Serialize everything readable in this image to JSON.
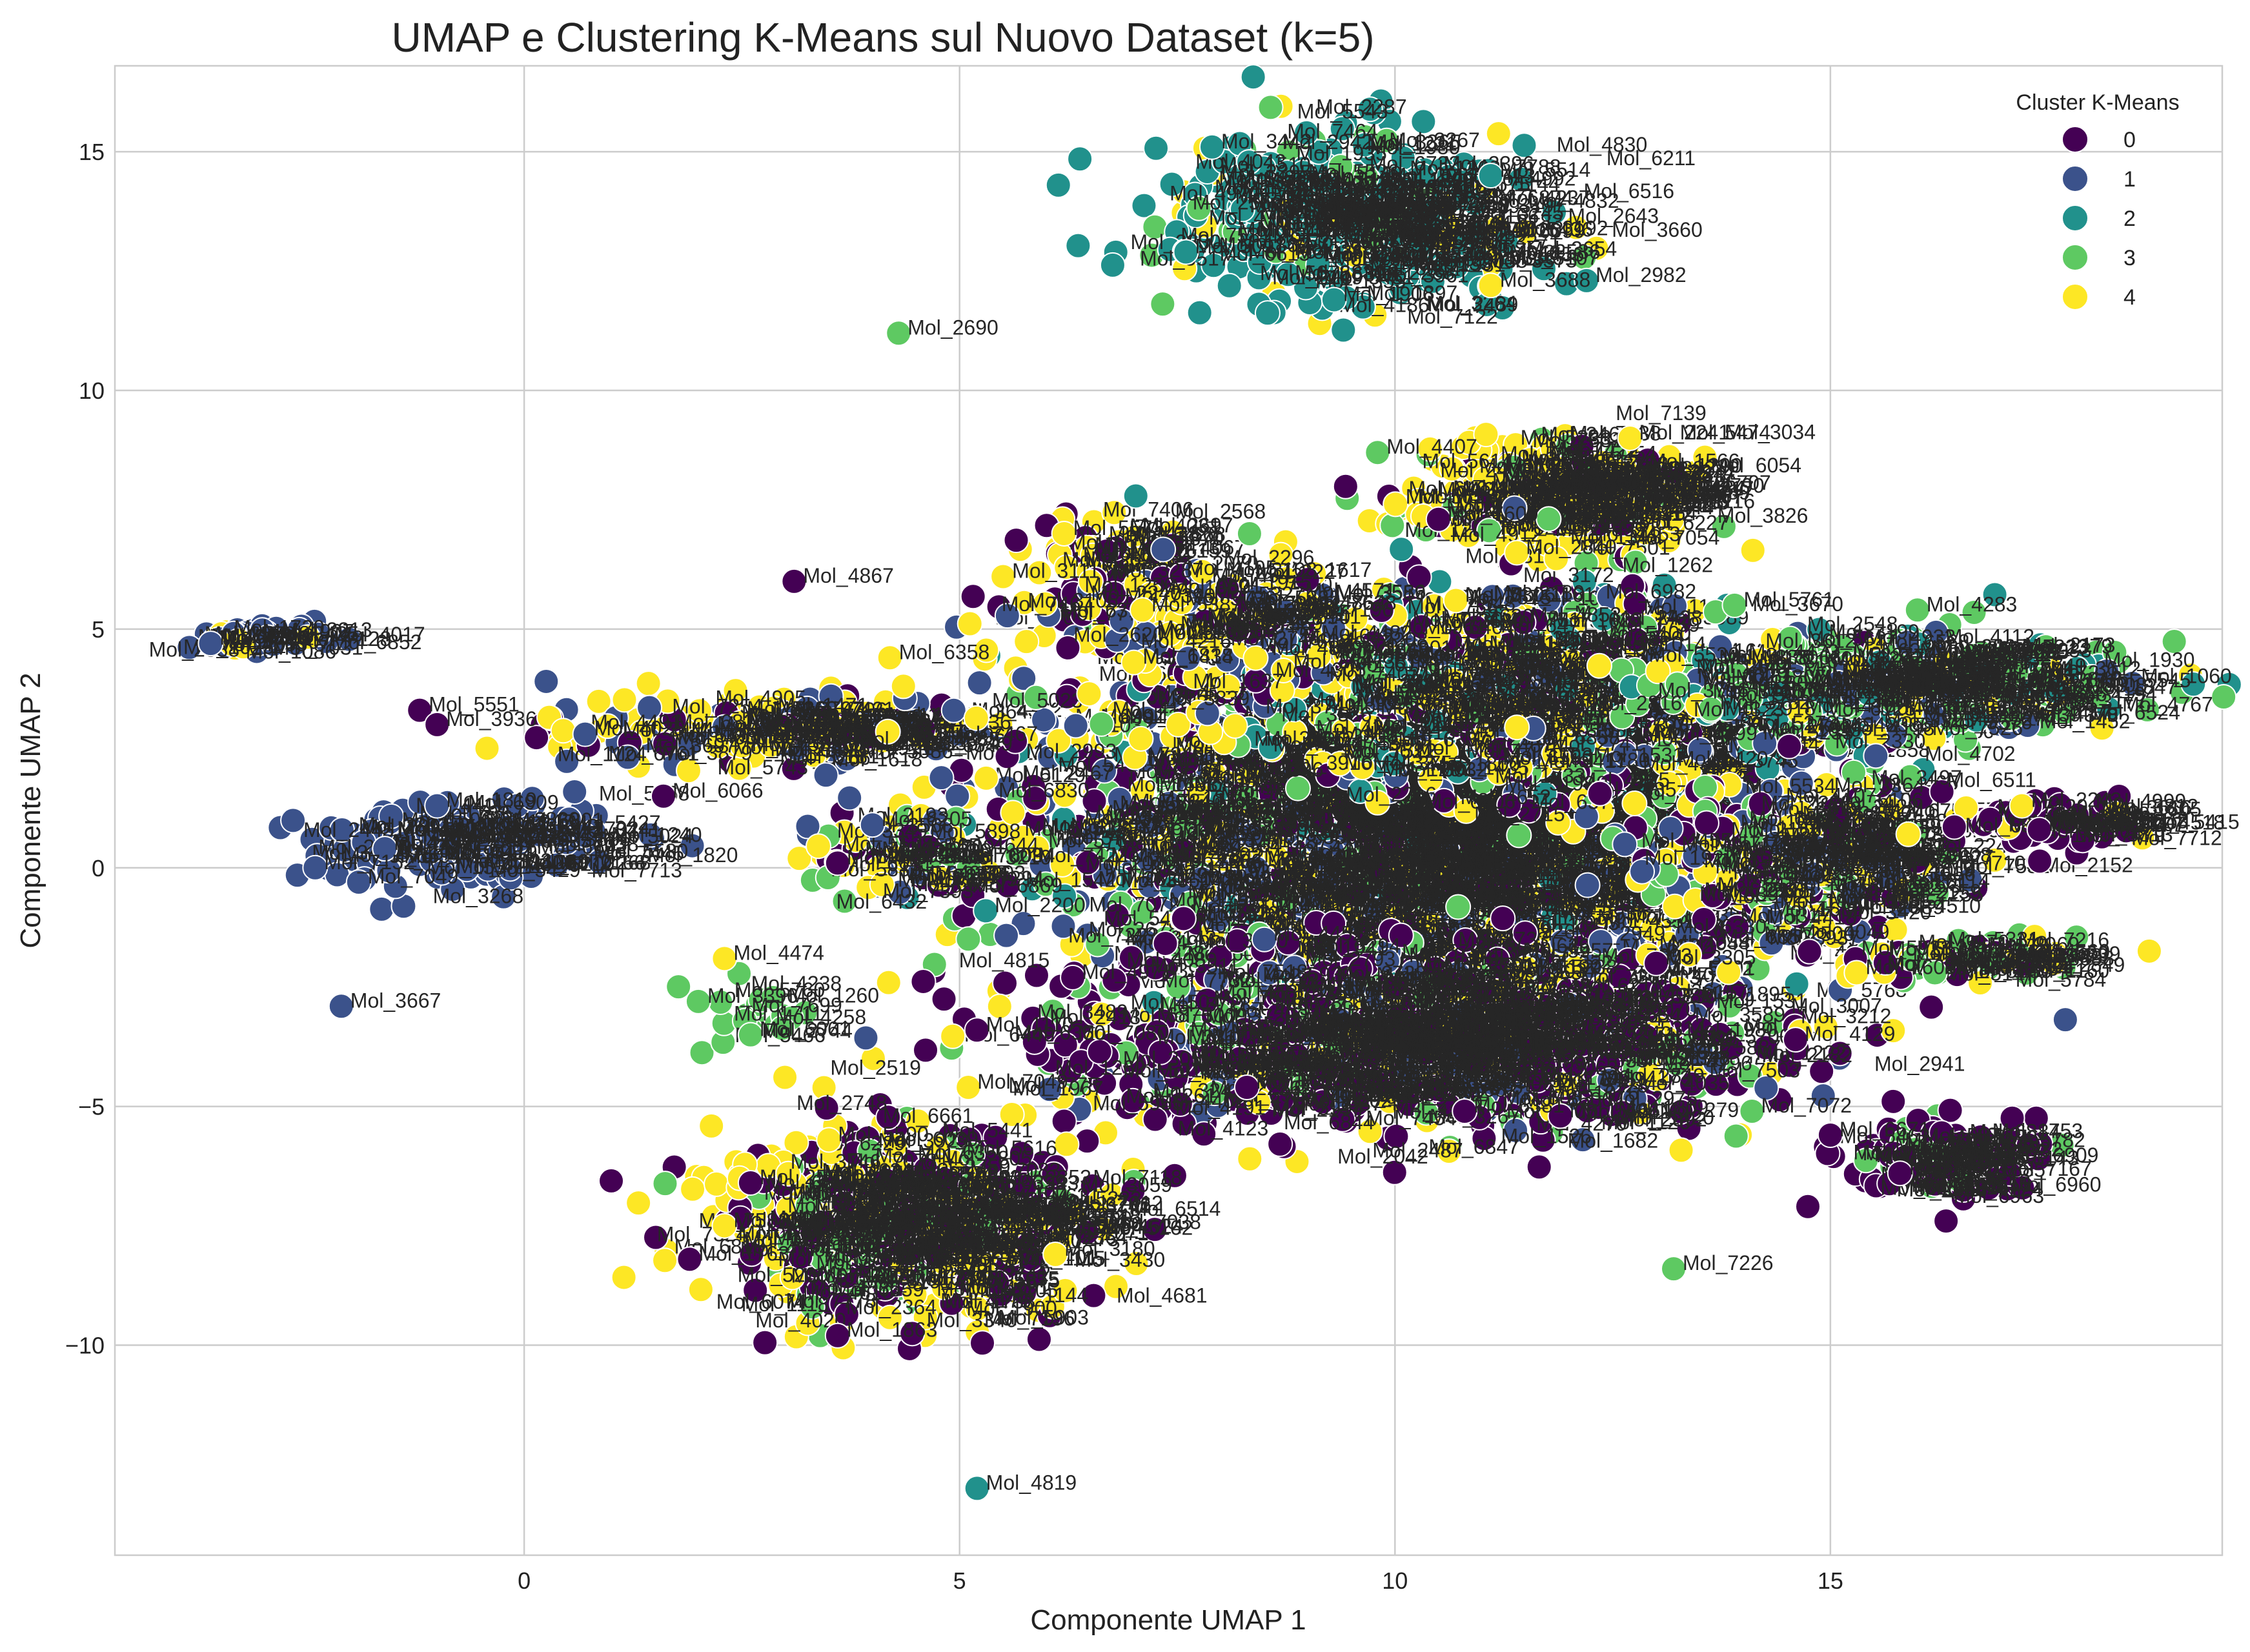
{
  "chart_data": {
    "type": "scatter",
    "title": "UMAP e Clustering K-Means sul Nuovo Dataset (k=5)",
    "xlabel": "Componente UMAP 1",
    "ylabel": "Componente UMAP 2",
    "xlim": [
      -4.7,
      19.5
    ],
    "ylim": [
      -14.4,
      16.8
    ],
    "xticks": [
      0,
      5,
      10,
      15
    ],
    "yticks": [
      -10,
      -5,
      0,
      5,
      10,
      15
    ],
    "grid": true,
    "legend": {
      "title": "Cluster K-Means",
      "position": "top-right"
    },
    "clusters": [
      {
        "name": "0",
        "color": "#440154"
      },
      {
        "name": "1",
        "color": "#3b528b"
      },
      {
        "name": "2",
        "color": "#21918c"
      },
      {
        "name": "3",
        "color": "#5ec962"
      },
      {
        "name": "4",
        "color": "#fde725"
      }
    ],
    "points": [
      {
        "x": 4.3,
        "y": 11.2,
        "c": 3,
        "label": "Mol_2690"
      },
      {
        "x": 9.8,
        "y": 8.7,
        "c": 3,
        "label": "Mol_4407"
      },
      {
        "x": 3.1,
        "y": 6.0,
        "c": 0,
        "label": "Mol_4867"
      },
      {
        "x": 13.9,
        "y": 5.5,
        "c": 3,
        "label": "Mol_5761"
      },
      {
        "x": -3.6,
        "y": 4.7,
        "c": 1,
        "label": "Mol_4220"
      },
      {
        "x": -1.2,
        "y": 3.3,
        "c": 0,
        "label": "Mol_5551"
      },
      {
        "x": -1.0,
        "y": 3.0,
        "c": 0,
        "label": "Mol_3936"
      },
      {
        "x": 1.6,
        "y": 1.5,
        "c": 0,
        "label": "Mol_6066"
      },
      {
        "x": -2.1,
        "y": -2.9,
        "c": 1,
        "label": "Mol_3667"
      },
      {
        "x": 2.3,
        "y": -1.9,
        "c": 4,
        "label": "Mol_4474"
      },
      {
        "x": 2.0,
        "y": -2.8,
        "c": 3,
        "label": "Mol_3396"
      },
      {
        "x": 2.6,
        "y": -3.5,
        "c": 3,
        "label": "Mol_6061"
      },
      {
        "x": 5.2,
        "y": -3.4,
        "c": 0,
        "label": "Mol_1110"
      },
      {
        "x": 14.1,
        "y": -5.1,
        "c": 3,
        "label": "Mol_7072"
      },
      {
        "x": 13.2,
        "y": -8.4,
        "c": 3,
        "label": "Mol_7226"
      },
      {
        "x": 5.2,
        "y": -13.0,
        "c": 2,
        "label": "Mol_4819"
      },
      {
        "x": 11.1,
        "y": 12.2,
        "c": 4,
        "label": "Mol_3688"
      },
      {
        "x": 15.3,
        "y": -2.2,
        "c": 4,
        "label": "Mol_7603"
      },
      {
        "x": 3.5,
        "y": -5.7,
        "c": 4,
        "label": "Mol_5590"
      },
      {
        "x": 2.6,
        "y": -6.6,
        "c": 0,
        "label": "Mol_2531"
      },
      {
        "x": 4.2,
        "y": 4.4,
        "c": 4,
        "label": "Mol_6358"
      },
      {
        "x": 6.2,
        "y": 7.0,
        "c": 4,
        "label": "Mol_5573"
      },
      {
        "x": 5.5,
        "y": 6.1,
        "c": 4,
        "label": "Mol_3111"
      },
      {
        "x": 7.0,
        "y": 4.3,
        "c": 4,
        "label": "Mol_1414"
      },
      {
        "x": 0.7,
        "y": 2.8,
        "c": 1,
        "label": "Mol_4025"
      },
      {
        "x": 10.5,
        "y": 7.3,
        "c": 0,
        "label": "Mol_7600"
      },
      {
        "x": 11.4,
        "y": 6.6,
        "c": 4,
        "label": "Mol_2840"
      },
      {
        "x": 17.2,
        "y": 1.3,
        "c": 4,
        "label": "Mol_2243"
      },
      {
        "x": 17.4,
        "y": 0.8,
        "c": 0,
        "label": "Mol_5618"
      },
      {
        "x": 16.0,
        "y": 5.4,
        "c": 3,
        "label": "Mol_4283"
      },
      {
        "x": 15.0,
        "y": -5.6,
        "c": 0,
        "label": "Mol_6671"
      },
      {
        "x": 11.9,
        "y": -5.2,
        "c": 0,
        "label": "Mol_5666"
      },
      {
        "x": 14.6,
        "y": -3.6,
        "c": 0,
        "label": "Mol_4129"
      },
      {
        "x": 7.6,
        "y": 12.9,
        "c": 2,
        "label": "Mol_5091"
      },
      {
        "x": 7.9,
        "y": 15.1,
        "c": 2,
        "label": "Mol_3442"
      },
      {
        "x": 11.1,
        "y": 14.5,
        "c": 2,
        "label": "Mol_5514"
      },
      {
        "x": 9.3,
        "y": 11.9,
        "c": 2,
        "label": "Mol_1906"
      },
      {
        "x": 12.2,
        "y": 12.3,
        "c": 2,
        "label": "Mol_2982"
      },
      {
        "x": -1.6,
        "y": 0.4,
        "c": 1,
        "label": "Mol_7331"
      },
      {
        "x": -2.4,
        "y": 0.0,
        "c": 1,
        "label": "Mol_7152"
      },
      {
        "x": -1.0,
        "y": 1.3,
        "c": 1,
        "label": "Mol_1819"
      },
      {
        "x": -1.9,
        "y": -0.3,
        "c": 1,
        "label": "Mol_7049"
      },
      {
        "x": 4.0,
        "y": 0.9,
        "c": 1,
        "label": "Mol_6205"
      },
      {
        "x": 3.6,
        "y": 0.1,
        "c": 0,
        "label": "Mol_4437"
      },
      {
        "x": 5.3,
        "y": -0.9,
        "c": 2,
        "label": "Mol_2200"
      },
      {
        "x": 6.3,
        "y": -2.3,
        "c": 0,
        "label": "Mol_4971"
      },
      {
        "x": 1.9,
        "y": -8.2,
        "c": 0,
        "label": "Mol_1763"
      },
      {
        "x": 2.3,
        "y": -7.5,
        "c": 4,
        "label": "Mol_6524"
      },
      {
        "x": 3.6,
        "y": -9.8,
        "c": 0,
        "label": "Mol_1863"
      },
      {
        "x": 6.1,
        "y": -8.1,
        "c": 4,
        "label": "Mol_3180"
      },
      {
        "x": 5.1,
        "y": -4.6,
        "c": 4,
        "label": "Mol_7049"
      },
      {
        "x": 8.3,
        "y": -4.6,
        "c": 0,
        "label": "Mol_2227"
      },
      {
        "x": 10.8,
        "y": -5.1,
        "c": 0,
        "label": "Mol_5381"
      },
      {
        "x": 15.8,
        "y": -6.4,
        "c": 0,
        "label": "Mol_6315"
      },
      {
        "x": 16.2,
        "y": -2.2,
        "c": 3,
        "label": "Mol_4810"
      },
      {
        "x": 12.7,
        "y": 9.0,
        "c": 4,
        "label": "Mol_2241"
      },
      {
        "x": 10.7,
        "y": 5.6,
        "c": 4,
        "label": "Mol_5306"
      },
      {
        "x": 7.1,
        "y": 5.4,
        "c": 4,
        "label": "Mol_5387"
      },
      {
        "x": 8.5,
        "y": -1.5,
        "c": 1,
        "label": "Mol_4452"
      },
      {
        "x": 13.0,
        "y": -2.0,
        "c": 0,
        "label": "Mol_3305"
      }
    ],
    "dense_clusters": [
      {
        "cx": 9.4,
        "cy": 13.6,
        "sx": 1.05,
        "sy": 0.85,
        "n": 420,
        "colors": [
          2,
          2,
          2,
          2,
          2,
          2,
          3,
          4
        ]
      },
      {
        "cx": 11.8,
        "cy": 7.9,
        "sx": 0.85,
        "sy": 0.55,
        "n": 320,
        "colors": [
          4,
          4,
          4,
          4,
          4,
          0,
          3
        ]
      },
      {
        "cx": 6.7,
        "cy": 6.4,
        "sx": 0.45,
        "sy": 0.45,
        "n": 60,
        "colors": [
          4,
          4,
          0
        ]
      },
      {
        "cx": -3.2,
        "cy": 4.8,
        "sx": 0.45,
        "sy": 0.16,
        "n": 40,
        "colors": [
          1,
          1,
          1,
          4
        ]
      },
      {
        "cx": -0.8,
        "cy": 0.5,
        "sx": 0.95,
        "sy": 0.45,
        "n": 140,
        "colors": [
          1,
          1,
          1,
          1
        ]
      },
      {
        "cx": 2.9,
        "cy": 2.9,
        "sx": 1.3,
        "sy": 0.35,
        "n": 180,
        "colors": [
          1,
          1,
          4,
          4,
          0
        ]
      },
      {
        "cx": 10.2,
        "cy": 1.0,
        "sx": 2.1,
        "sy": 2.0,
        "n": 2400,
        "colors": [
          0,
          0,
          1,
          1,
          2,
          3,
          4,
          4,
          4,
          0,
          1,
          3
        ]
      },
      {
        "cx": 11.2,
        "cy": 3.6,
        "sx": 1.8,
        "sy": 1.1,
        "n": 520,
        "colors": [
          4,
          4,
          1,
          3,
          0,
          2
        ]
      },
      {
        "cx": 15.6,
        "cy": 3.8,
        "sx": 1.3,
        "sy": 0.55,
        "n": 360,
        "colors": [
          3,
          3,
          3,
          2,
          4,
          1
        ]
      },
      {
        "cx": 10.0,
        "cy": -3.6,
        "sx": 2.0,
        "sy": 0.9,
        "n": 900,
        "colors": [
          0,
          0,
          0,
          0,
          1,
          3,
          4
        ]
      },
      {
        "cx": 14.5,
        "cy": 0.2,
        "sx": 0.9,
        "sy": 0.8,
        "n": 260,
        "colors": [
          4,
          3,
          0,
          1
        ]
      },
      {
        "cx": 17.6,
        "cy": 1.0,
        "sx": 0.6,
        "sy": 0.25,
        "n": 60,
        "colors": [
          0,
          4,
          0
        ]
      },
      {
        "cx": 16.4,
        "cy": -1.9,
        "sx": 0.7,
        "sy": 0.2,
        "n": 70,
        "colors": [
          3,
          3,
          4,
          0
        ]
      },
      {
        "cx": 16.1,
        "cy": -6.1,
        "sx": 0.55,
        "sy": 0.45,
        "n": 110,
        "colors": [
          0,
          0,
          0,
          0,
          0,
          3
        ]
      },
      {
        "cx": 4.2,
        "cy": -7.4,
        "sx": 1.1,
        "sy": 1.0,
        "n": 520,
        "colors": [
          0,
          0,
          0,
          4,
          4,
          4,
          3
        ]
      },
      {
        "cx": 4.3,
        "cy": 0.2,
        "sx": 0.5,
        "sy": 0.4,
        "n": 70,
        "colors": [
          4,
          4,
          1,
          0,
          3
        ]
      },
      {
        "cx": 2.6,
        "cy": -3.0,
        "sx": 0.35,
        "sy": 0.3,
        "n": 18,
        "colors": [
          3,
          3,
          3
        ]
      },
      {
        "cx": 7.6,
        "cy": 5.3,
        "sx": 1.0,
        "sy": 0.5,
        "n": 120,
        "colors": [
          0,
          4,
          4,
          1
        ]
      }
    ],
    "dense_label_prefix": "Mol_"
  }
}
